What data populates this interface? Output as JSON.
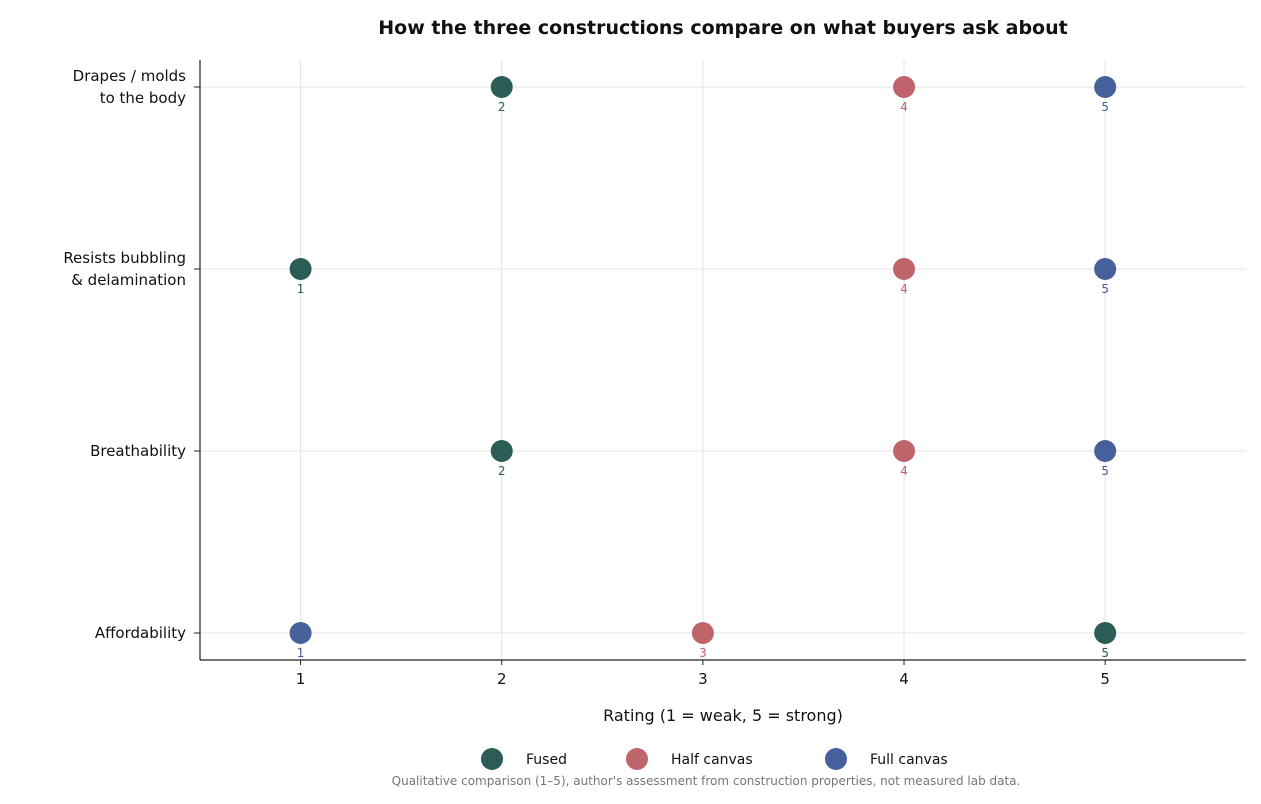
{
  "chart_data": {
    "type": "scatter",
    "title": "How the three constructions compare on what buyers ask about",
    "xlabel": "Rating (1 = weak, 5 = strong)",
    "ylabel": "",
    "xlim": [
      0.5,
      5.7
    ],
    "xticks": [
      "1",
      "2",
      "3",
      "4",
      "5"
    ],
    "grid": true,
    "legend_position": "bottom",
    "categories": [
      [
        "Drapes / molds",
        "to the body"
      ],
      [
        "Resists bubbling",
        "& delamination"
      ],
      [
        "Breathability"
      ],
      [
        "Affordability"
      ]
    ],
    "series": [
      {
        "name": "Fused",
        "color": "#2b5c56",
        "values": [
          2,
          1,
          2,
          5
        ],
        "labels": [
          "2",
          "1",
          "2",
          "5"
        ]
      },
      {
        "name": "Half canvas",
        "color": "#c0646b",
        "values": [
          4,
          4,
          4,
          3
        ],
        "labels": [
          "4",
          "4",
          "4",
          "3"
        ]
      },
      {
        "name": "Full canvas",
        "color": "#46609c",
        "values": [
          5,
          5,
          5,
          1
        ],
        "labels": [
          "5",
          "5",
          "5",
          "1"
        ]
      }
    ],
    "note": "Qualitative comparison (1–5), author's assessment from construction properties, not measured lab data."
  }
}
